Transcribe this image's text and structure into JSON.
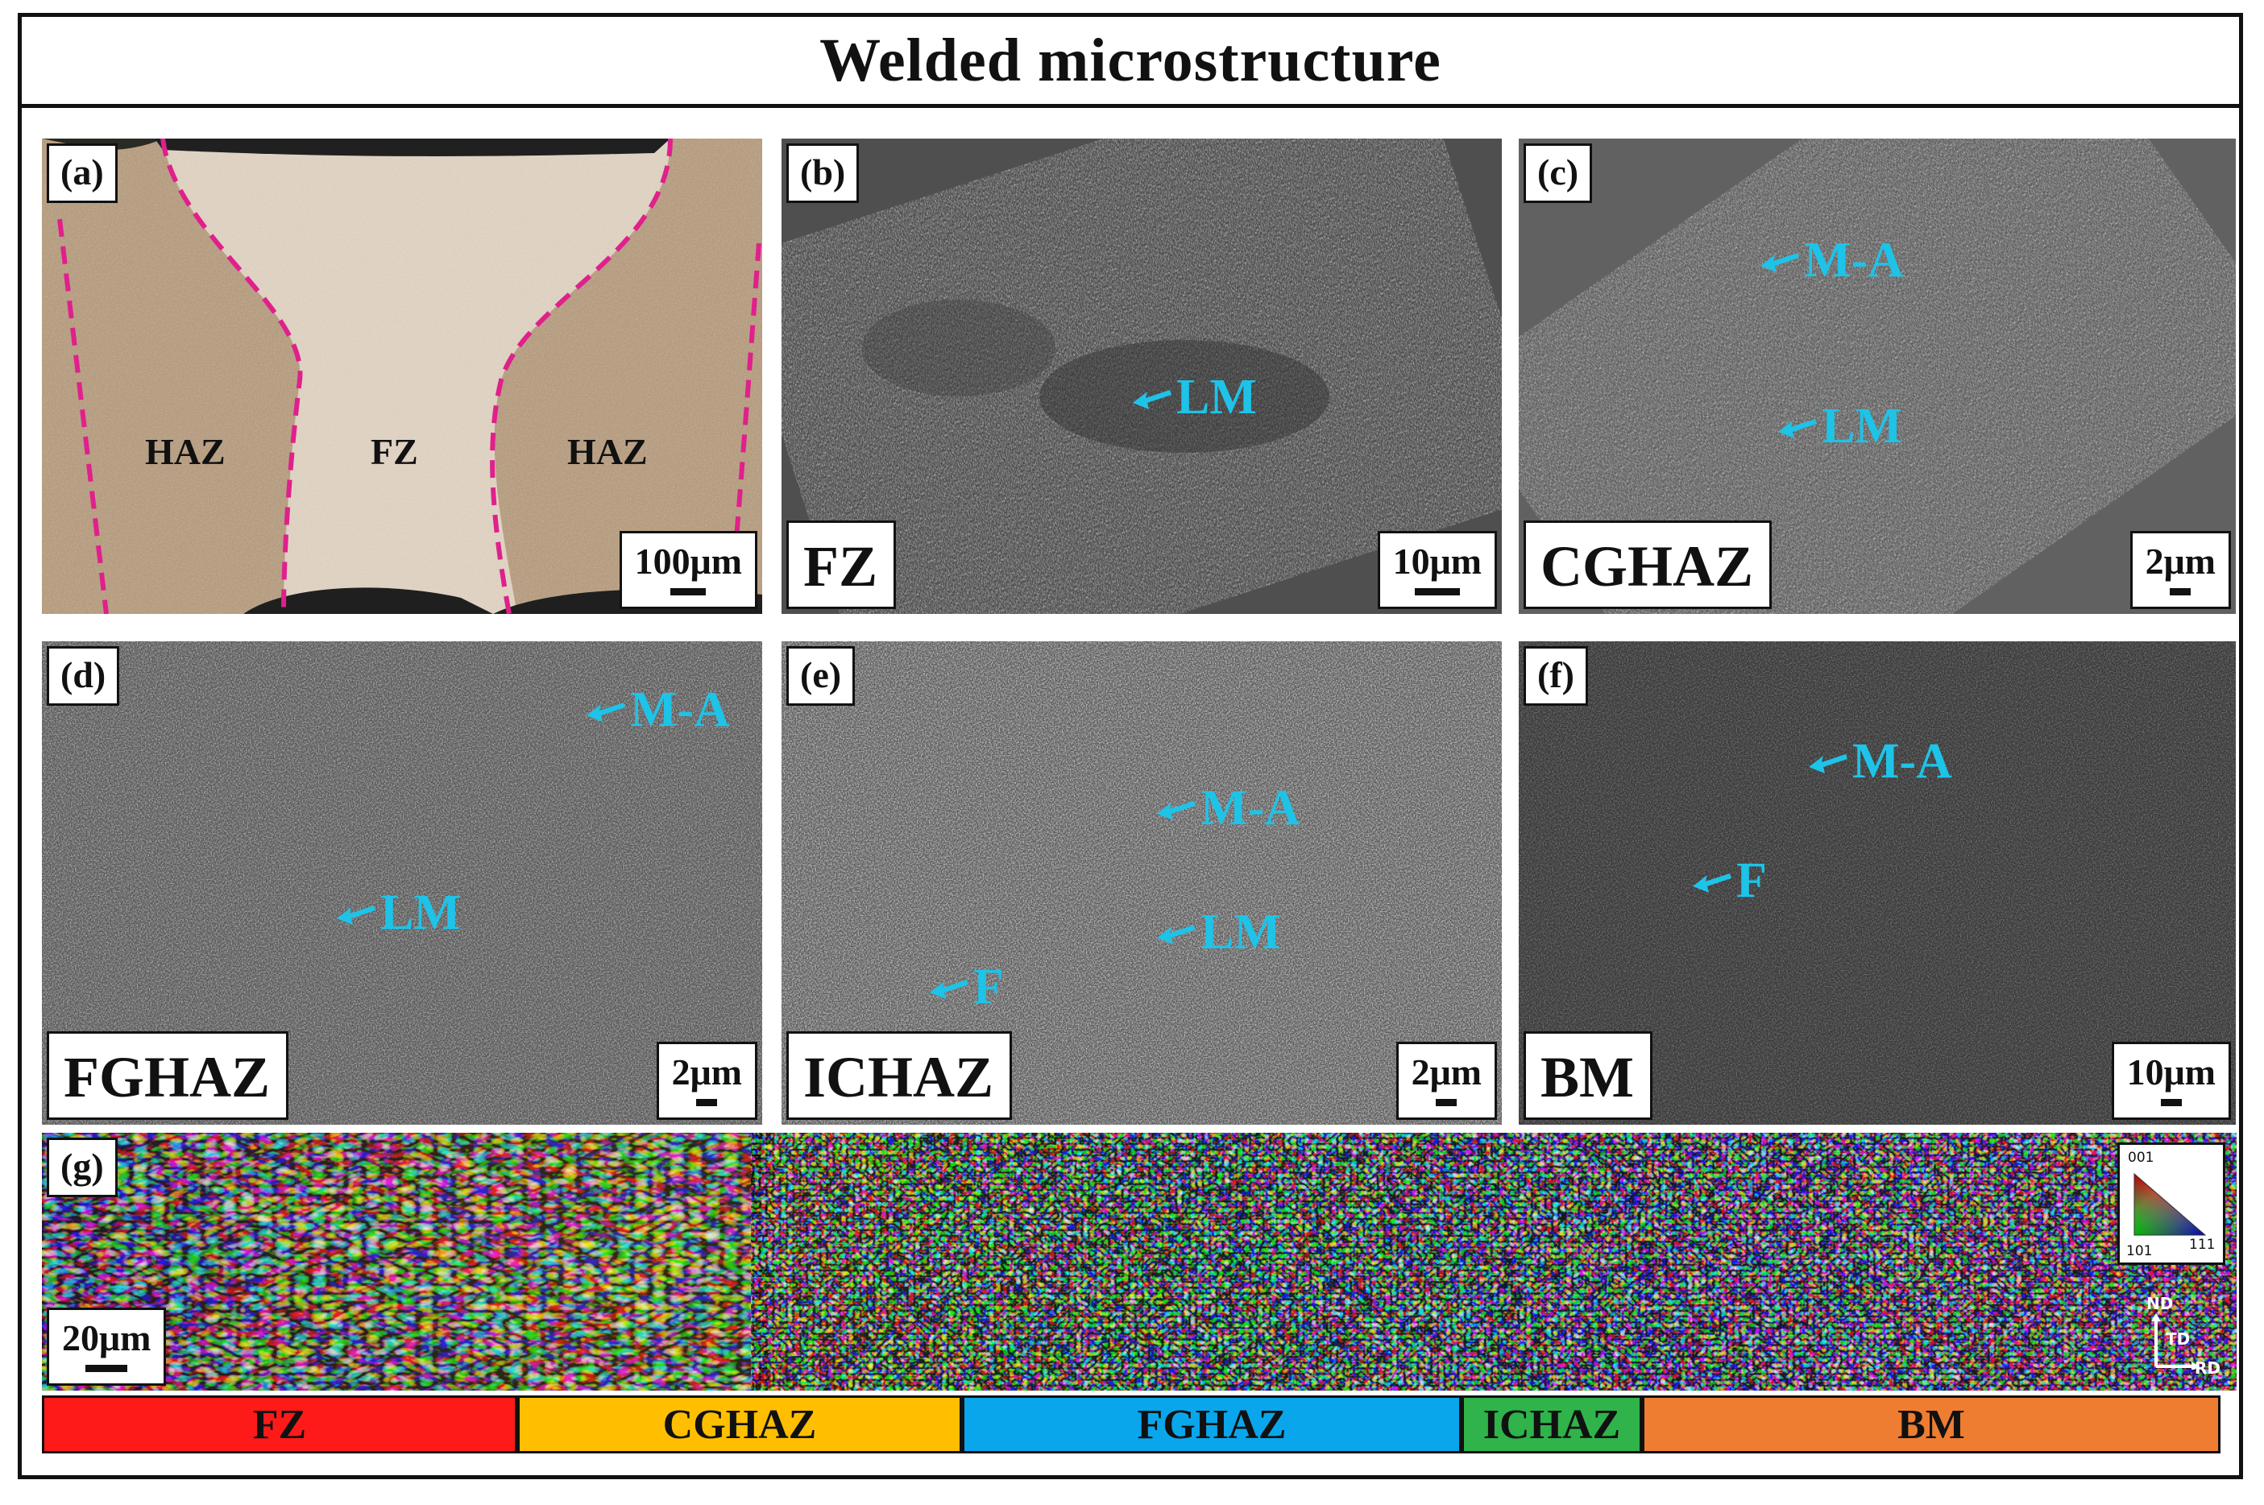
{
  "title": "Welded microstructure",
  "panels": {
    "a": {
      "label": "(a)",
      "scale": "100μm",
      "regions": [
        "HAZ",
        "FZ",
        "HAZ"
      ]
    },
    "b": {
      "label": "(b)",
      "scale": "10μm",
      "zone": "FZ",
      "annotations": [
        "LM"
      ]
    },
    "c": {
      "label": "(c)",
      "scale": "2μm",
      "zone": "CGHAZ",
      "annotations": [
        "M-A",
        "LM"
      ]
    },
    "d": {
      "label": "(d)",
      "scale": "2μm",
      "zone": "FGHAZ",
      "annotations": [
        "M-A",
        "LM"
      ]
    },
    "e": {
      "label": "(e)",
      "scale": "2μm",
      "zone": "ICHAZ",
      "annotations": [
        "M-A",
        "LM",
        "F"
      ]
    },
    "f": {
      "label": "(f)",
      "scale": "10μm",
      "zone": "BM",
      "annotations": [
        "M-A",
        "F"
      ]
    },
    "g": {
      "label": "(g)",
      "scale": "20μm",
      "ipf_key": [
        "001",
        "101",
        "111"
      ],
      "axes": [
        "ND",
        "TD",
        "RD"
      ]
    }
  },
  "zone_bar": [
    {
      "name": "FZ",
      "color": "#ff1a1a"
    },
    {
      "name": "CGHAZ",
      "color": "#ffbf00"
    },
    {
      "name": "FGHAZ",
      "color": "#0aa6ec"
    },
    {
      "name": "ICHAZ",
      "color": "#2fb34a"
    },
    {
      "name": "BM",
      "color": "#ee7d31"
    }
  ],
  "colors": {
    "annotation": "#1ec3e8",
    "fusion_line": "#e0208c"
  }
}
